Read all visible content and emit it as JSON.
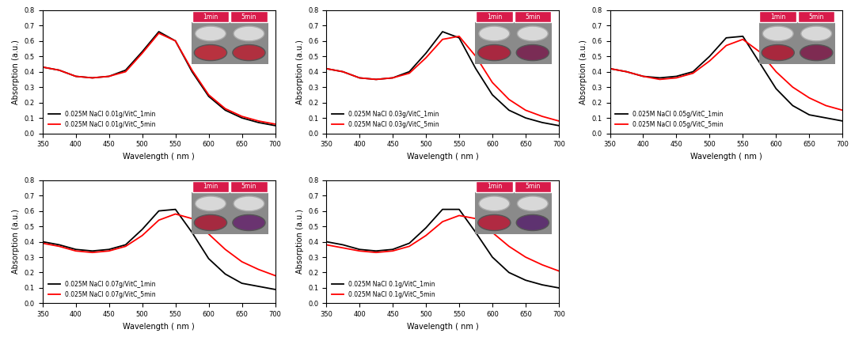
{
  "chart_data": [
    {
      "type": "line",
      "x_label": "Wavelength ( nm )",
      "y_label": "Absorption (a.u.)",
      "x": [
        350,
        375,
        400,
        425,
        450,
        475,
        500,
        525,
        550,
        575,
        600,
        625,
        650,
        675,
        700
      ],
      "xlim": [
        350,
        700
      ],
      "xticks": [
        350,
        400,
        450,
        500,
        550,
        600,
        650,
        700
      ],
      "ylim": [
        0.0,
        0.8
      ],
      "yticks": [
        0.0,
        0.1,
        0.2,
        0.3,
        0.4,
        0.5,
        0.6,
        0.7,
        0.8
      ],
      "legend": "lower left",
      "inset_labels": [
        "1min",
        "5min"
      ],
      "series": [
        {
          "name": "0.025M NaCl 0.01g/VitC_1min",
          "color": "#000000",
          "values": [
            0.43,
            0.41,
            0.37,
            0.36,
            0.37,
            0.41,
            0.53,
            0.66,
            0.6,
            0.4,
            0.24,
            0.15,
            0.1,
            0.07,
            0.05
          ]
        },
        {
          "name": "0.025M NaCl 0.01g/VitC_5min",
          "color": "#ff0000",
          "values": [
            0.43,
            0.41,
            0.37,
            0.36,
            0.37,
            0.4,
            0.52,
            0.65,
            0.6,
            0.41,
            0.25,
            0.16,
            0.11,
            0.08,
            0.06
          ]
        }
      ]
    },
    {
      "type": "line",
      "x_label": "Wavelength ( nm )",
      "y_label": "Absorption (a.u.)",
      "x": [
        350,
        375,
        400,
        425,
        450,
        475,
        500,
        525,
        550,
        575,
        600,
        625,
        650,
        675,
        700
      ],
      "xlim": [
        350,
        700
      ],
      "xticks": [
        350,
        400,
        450,
        500,
        550,
        600,
        650,
        700
      ],
      "ylim": [
        0.0,
        0.8
      ],
      "yticks": [
        0.0,
        0.1,
        0.2,
        0.3,
        0.4,
        0.5,
        0.6,
        0.7,
        0.8
      ],
      "legend": "lower left",
      "inset_labels": [
        "1min",
        "5min"
      ],
      "series": [
        {
          "name": "0.025M NaCl 0.03g/VitC_1min",
          "color": "#000000",
          "values": [
            0.42,
            0.4,
            0.36,
            0.35,
            0.36,
            0.4,
            0.52,
            0.66,
            0.62,
            0.42,
            0.25,
            0.15,
            0.1,
            0.07,
            0.05
          ]
        },
        {
          "name": "0.025M NaCl 0.03g/VitC_5min",
          "color": "#ff0000",
          "values": [
            0.42,
            0.4,
            0.36,
            0.35,
            0.36,
            0.39,
            0.49,
            0.61,
            0.63,
            0.5,
            0.33,
            0.22,
            0.15,
            0.11,
            0.08
          ]
        }
      ]
    },
    {
      "type": "line",
      "x_label": "Wavelength ( nm )",
      "y_label": "Absorption (a.u.)",
      "x": [
        350,
        375,
        400,
        425,
        450,
        475,
        500,
        525,
        550,
        575,
        600,
        625,
        650,
        675,
        700
      ],
      "xlim": [
        350,
        700
      ],
      "xticks": [
        350,
        400,
        450,
        500,
        550,
        600,
        650,
        700
      ],
      "ylim": [
        0.0,
        0.8
      ],
      "yticks": [
        0.0,
        0.1,
        0.2,
        0.3,
        0.4,
        0.5,
        0.6,
        0.7,
        0.8
      ],
      "legend": "lower left",
      "inset_labels": [
        "1min",
        "5min"
      ],
      "series": [
        {
          "name": "0.025M NaCl 0.05g/VitC_1min",
          "color": "#000000",
          "values": [
            0.42,
            0.4,
            0.37,
            0.36,
            0.37,
            0.4,
            0.5,
            0.62,
            0.63,
            0.46,
            0.29,
            0.18,
            0.12,
            0.1,
            0.08
          ]
        },
        {
          "name": "0.025M NaCl 0.05g/VitC_5min",
          "color": "#ff0000",
          "values": [
            0.42,
            0.4,
            0.37,
            0.35,
            0.36,
            0.39,
            0.47,
            0.57,
            0.61,
            0.53,
            0.4,
            0.3,
            0.23,
            0.18,
            0.15
          ]
        }
      ]
    },
    {
      "type": "line",
      "x_label": "Wavelength ( nm )",
      "y_label": "Absorption (a.u.)",
      "x": [
        350,
        375,
        400,
        425,
        450,
        475,
        500,
        525,
        550,
        575,
        600,
        625,
        650,
        675,
        700
      ],
      "xlim": [
        350,
        700
      ],
      "xticks": [
        350,
        400,
        450,
        500,
        550,
        600,
        650,
        700
      ],
      "ylim": [
        0.0,
        0.8
      ],
      "yticks": [
        0.0,
        0.1,
        0.2,
        0.3,
        0.4,
        0.5,
        0.6,
        0.7,
        0.8
      ],
      "legend": "lower left",
      "inset_labels": [
        "1min",
        "5min"
      ],
      "series": [
        {
          "name": "0.025M NaCl 0.07g/VitC_1min",
          "color": "#000000",
          "values": [
            0.4,
            0.38,
            0.35,
            0.34,
            0.35,
            0.38,
            0.48,
            0.6,
            0.61,
            0.46,
            0.29,
            0.19,
            0.13,
            0.11,
            0.09
          ]
        },
        {
          "name": "0.025M NaCl 0.07g/VitC_5min",
          "color": "#ff0000",
          "values": [
            0.39,
            0.37,
            0.34,
            0.33,
            0.34,
            0.37,
            0.44,
            0.54,
            0.58,
            0.55,
            0.45,
            0.35,
            0.27,
            0.22,
            0.18
          ]
        }
      ]
    },
    {
      "type": "line",
      "x_label": "Wavelength ( nm )",
      "y_label": "Absorption (a.u.)",
      "x": [
        350,
        375,
        400,
        425,
        450,
        475,
        500,
        525,
        550,
        575,
        600,
        625,
        650,
        675,
        700
      ],
      "xlim": [
        350,
        700
      ],
      "xticks": [
        350,
        400,
        450,
        500,
        550,
        600,
        650,
        700
      ],
      "ylim": [
        0.0,
        0.8
      ],
      "yticks": [
        0.0,
        0.1,
        0.2,
        0.3,
        0.4,
        0.5,
        0.6,
        0.7,
        0.8
      ],
      "legend": "lower left",
      "inset_labels": [
        "1min",
        "5min"
      ],
      "series": [
        {
          "name": "0.025M NaCl 0.1g/VitC_1min",
          "color": "#000000",
          "values": [
            0.4,
            0.38,
            0.35,
            0.34,
            0.35,
            0.39,
            0.49,
            0.61,
            0.61,
            0.46,
            0.3,
            0.2,
            0.15,
            0.12,
            0.1
          ]
        },
        {
          "name": "0.025M NaCl 0.1g/VitC_5min",
          "color": "#ff0000",
          "values": [
            0.38,
            0.36,
            0.34,
            0.33,
            0.34,
            0.37,
            0.44,
            0.53,
            0.57,
            0.55,
            0.46,
            0.37,
            0.3,
            0.25,
            0.21
          ]
        }
      ]
    }
  ]
}
